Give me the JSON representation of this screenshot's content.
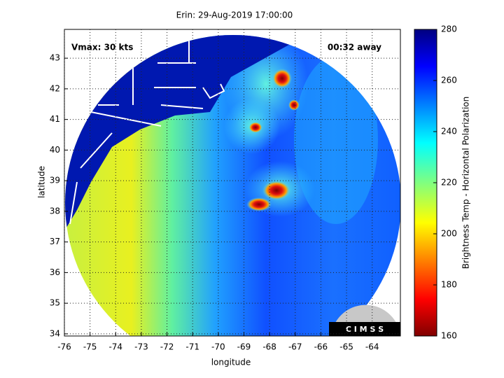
{
  "chart_data": {
    "type": "map",
    "title": "Erin: 29-Aug-2019 17:00:00",
    "xlabel": "longitude",
    "ylabel": "latitude",
    "xlim": [
      -76,
      -62.9
    ],
    "ylim": [
      33.93,
      43.94
    ],
    "xticks": [
      -76,
      -75,
      -74,
      -73,
      -72,
      -71,
      -70,
      -69,
      -68,
      -67,
      -66,
      -65,
      -64
    ],
    "yticks": [
      34,
      35,
      36,
      37,
      38,
      39,
      40,
      41,
      42,
      43
    ],
    "grid": true,
    "annotations": [
      "Vmax: 30 kts",
      "00:32 away"
    ],
    "logo": "C I M S S",
    "colorbar": {
      "label": "Brightness Temp - Horizontal Polarization",
      "lim": [
        160,
        280
      ],
      "ticks": [
        160,
        180,
        200,
        220,
        240,
        260,
        280
      ]
    }
  }
}
